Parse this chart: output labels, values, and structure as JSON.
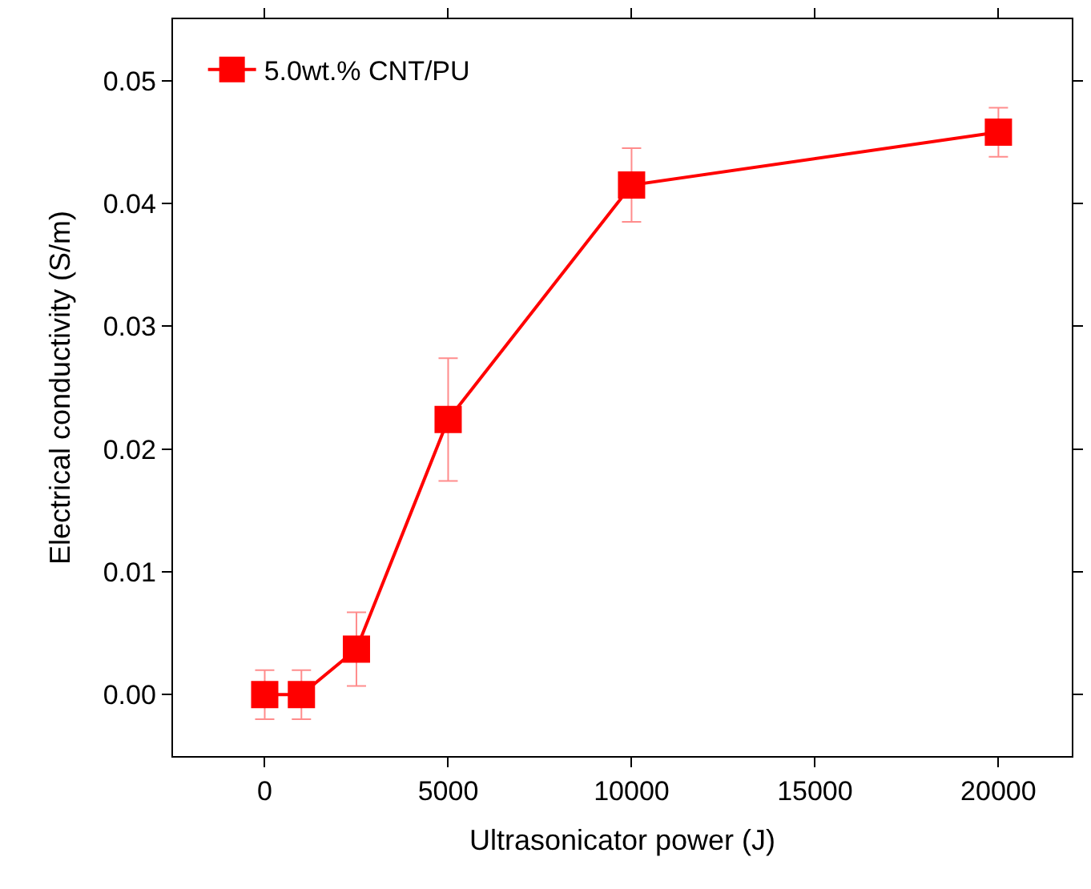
{
  "chart_data": {
    "type": "line",
    "xlabel": "Ultrasonicator power (J)",
    "ylabel": "Electrical conductivity (S/m)",
    "x": [
      0,
      1000,
      2500,
      5000,
      10000,
      20000
    ],
    "series": [
      {
        "name": "5.0wt.% CNT/PU",
        "color": "#ff0000",
        "values": [
          0.0,
          0.0,
          0.0037,
          0.0224,
          0.0415,
          0.0458
        ],
        "errors": [
          0.002,
          0.002,
          0.003,
          0.005,
          0.003,
          0.002
        ]
      }
    ],
    "xlim": [
      -2500,
      22000
    ],
    "xticks": [
      0,
      5000,
      10000,
      15000,
      20000
    ],
    "ylim": [
      -0.005,
      0.055
    ],
    "yticks": [
      {
        "value": 0,
        "label": "0.00"
      },
      0.01,
      0.02,
      0.03,
      0.04,
      0.05
    ],
    "legend": "top left",
    "marker": "square",
    "line_style": "solid"
  }
}
